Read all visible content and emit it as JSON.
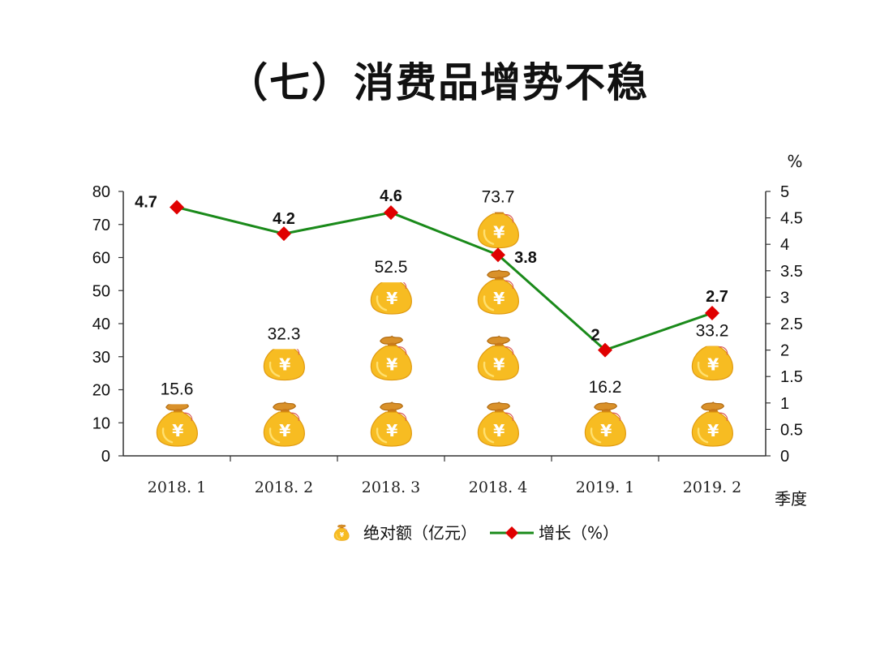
{
  "page": {
    "title": "（七）消费品增势不稳"
  },
  "chart_data": {
    "type": "bar",
    "categories": [
      "2018. 1",
      "2018. 2",
      "2018. 3",
      "2018. 4",
      "2019. 1",
      "2019. 2"
    ],
    "series": [
      {
        "name": "绝对额（亿元）",
        "type": "bar",
        "axis": "left",
        "values": [
          15.6,
          32.3,
          52.5,
          73.7,
          16.2,
          33.2
        ],
        "color": "#F5B623"
      },
      {
        "name": "增长（%）",
        "type": "line",
        "axis": "right",
        "values": [
          4.7,
          4.2,
          4.6,
          3.8,
          2,
          2.7
        ],
        "color": "#1A8A1A",
        "marker_color": "#E00000"
      }
    ],
    "y_left": {
      "ylim": [
        0,
        80
      ],
      "ticks": [
        "0",
        "10",
        "20",
        "30",
        "40",
        "50",
        "60",
        "70",
        "80"
      ]
    },
    "y_right": {
      "ylim": [
        0,
        5
      ],
      "unit": "%",
      "ticks": [
        "0",
        "0.5",
        "1",
        "1.5",
        "2",
        "2.5",
        "3",
        "3.5",
        "4",
        "4.5",
        "5"
      ]
    },
    "xlabel": "季度",
    "grid": false,
    "legend": "bottom-center",
    "bar_value_labels": [
      "15.6",
      "32.3",
      "52.5",
      "73.7",
      "16.2",
      "33.2"
    ],
    "line_value_labels": [
      "4.7",
      "4.2",
      "4.6",
      "3.8",
      "2",
      "2.7"
    ]
  }
}
